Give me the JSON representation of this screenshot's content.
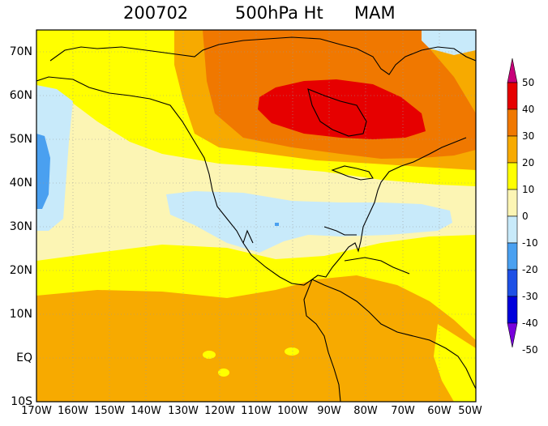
{
  "title": {
    "date": "200702",
    "field": "500hPa Ht",
    "season": "MAM"
  },
  "lat_labels": [
    "70N",
    "60N",
    "50N",
    "40N",
    "30N",
    "20N",
    "10N",
    "EQ",
    "10S"
  ],
  "lon_labels": [
    "170W",
    "160W",
    "150W",
    "140W",
    "130W",
    "120W",
    "110W",
    "100W",
    "90W",
    "80W",
    "70W",
    "60W",
    "50W"
  ],
  "colorbar": {
    "labels": [
      "50",
      "40",
      "30",
      "20",
      "10",
      "0",
      "-10",
      "-20",
      "-30",
      "-40",
      "-50"
    ],
    "colors": [
      "#c8007a",
      "#e60000",
      "#f07800",
      "#f7aa00",
      "#ffff00",
      "#fcf5b4",
      "#c8eafa",
      "#4aa0f0",
      "#1e50e6",
      "#0000dc",
      "#7800dc"
    ]
  },
  "map": {
    "extent": {
      "lon": [
        -170,
        -50
      ],
      "lat": [
        -10,
        75
      ]
    },
    "ocean_color": "#fcf5b4",
    "coast_color": "#000000"
  }
}
